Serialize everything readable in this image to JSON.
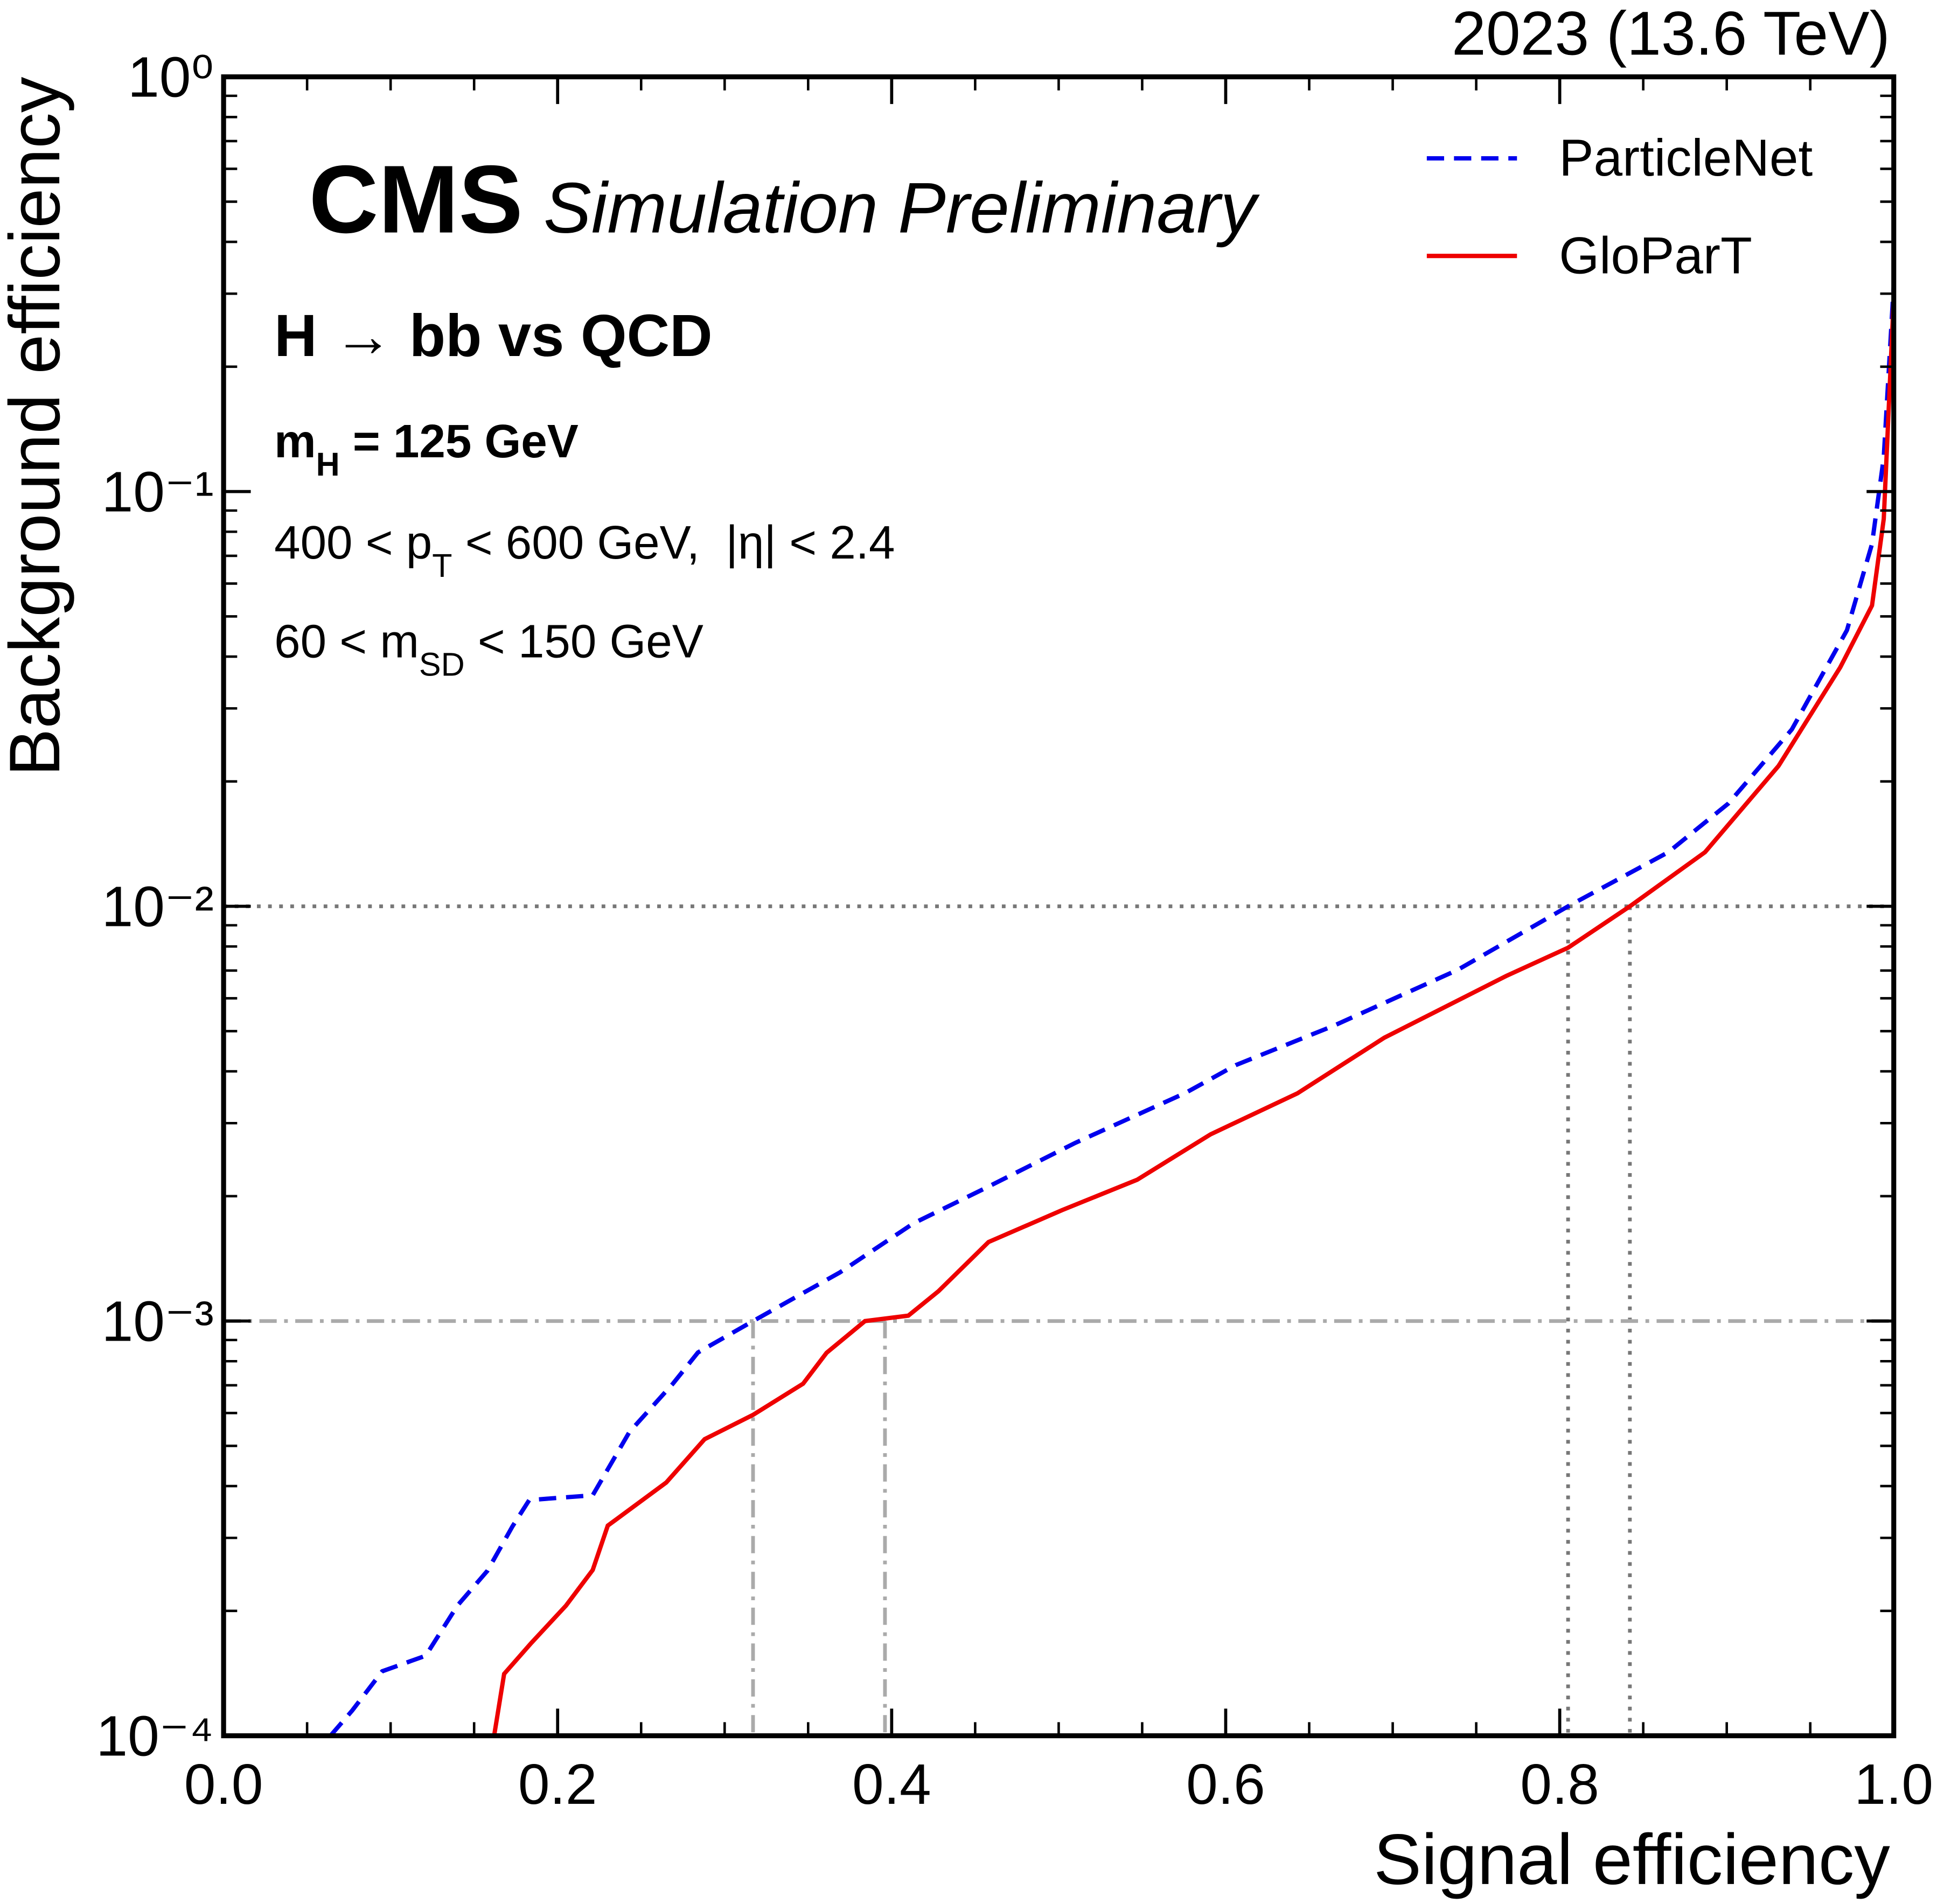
{
  "chart_data": {
    "type": "line",
    "title": "2023 (13.6 TeV)",
    "experiment": "CMS",
    "subtitle": "Simulation Preliminary",
    "annotations": [
      [
        {
          "t": "H → bb vs QCD"
        }
      ],
      [
        {
          "t": "m"
        },
        {
          "sub": "H"
        },
        {
          "t": " = 125 GeV"
        }
      ],
      [
        {
          "t": "400 < p"
        },
        {
          "sub": "T"
        },
        {
          "t": " < 600 GeV,  |η| < 2.4"
        }
      ],
      [
        {
          "t": "60 < m"
        },
        {
          "sub": "SD"
        },
        {
          "t": " < 150 GeV"
        }
      ]
    ],
    "xlabel": "Signal efficiency",
    "ylabel": "Background efficiency",
    "xlim": [
      0,
      1
    ],
    "ylim": [
      0.0001,
      1
    ],
    "yscale": "log",
    "xticks": [
      {
        "value": 0,
        "label": "0.0"
      },
      0.2,
      0.4,
      0.6,
      0.8,
      {
        "value": 1,
        "label": "1.0"
      }
    ],
    "xminorticks": [
      0.05,
      0.1,
      0.15,
      0.25,
      0.3,
      0.35,
      0.45,
      0.5,
      0.55,
      0.65,
      0.7,
      0.75,
      0.85,
      0.9,
      0.95
    ],
    "yticks": [
      {
        "value": 1,
        "label": "10⁰"
      },
      {
        "value": 0.1,
        "label": "10⁻¹"
      },
      {
        "value": 0.01,
        "label": "10⁻²"
      },
      {
        "value": 0.001,
        "label": "10⁻³"
      },
      {
        "value": 0.0001,
        "label": "10⁻⁴"
      }
    ],
    "yminorticks": [
      0.0002,
      0.0003,
      0.0004,
      0.0005,
      0.0006,
      0.0007,
      0.0008,
      0.0009,
      0.002,
      0.003,
      0.004,
      0.005,
      0.006,
      0.007,
      0.008,
      0.009,
      0.02,
      0.03,
      0.04,
      0.05,
      0.06,
      0.07,
      0.08,
      0.09,
      0.2,
      0.3,
      0.4,
      0.5,
      0.6,
      0.7,
      0.8,
      0.9
    ],
    "legend": "upper right",
    "series": [
      {
        "name": "ParticleNet",
        "color": "#0000ee",
        "dash": "dashed",
        "x": [
          0.064,
          0.077,
          0.095,
          0.121,
          0.14,
          0.158,
          0.173,
          0.183,
          0.221,
          0.243,
          0.269,
          0.284,
          0.317,
          0.369,
          0.413,
          0.458,
          0.51,
          0.576,
          0.606,
          0.665,
          0.739,
          0.805,
          0.865,
          0.901,
          0.939,
          0.972,
          0.987,
          0.994,
          1.0
        ],
        "values": [
          0.0001,
          0.000115,
          0.000143,
          0.000156,
          0.000206,
          0.00025,
          0.00032,
          0.00037,
          0.00038,
          0.00054,
          0.000706,
          0.00084,
          0.001,
          0.00131,
          0.00172,
          0.00211,
          0.00269,
          0.00355,
          0.00414,
          0.00516,
          0.00703,
          0.01,
          0.0135,
          0.0177,
          0.0267,
          0.0463,
          0.0748,
          0.121,
          0.316
        ]
      },
      {
        "name": "GloParT",
        "color": "#ee0000",
        "dash": "solid",
        "x": [
          0.162,
          0.168,
          0.184,
          0.205,
          0.221,
          0.23,
          0.265,
          0.288,
          0.317,
          0.347,
          0.361,
          0.384,
          0.41,
          0.428,
          0.458,
          0.502,
          0.547,
          0.591,
          0.643,
          0.695,
          0.768,
          0.805,
          0.842,
          0.887,
          0.931,
          0.968,
          0.987,
          0.994,
          1.0
        ],
        "values": [
          0.0001,
          0.000141,
          0.000167,
          0.000206,
          0.000251,
          0.000321,
          0.000408,
          0.000519,
          0.000594,
          0.000706,
          0.000838,
          0.001,
          0.00103,
          0.00118,
          0.00155,
          0.00185,
          0.00219,
          0.00282,
          0.00354,
          0.00482,
          0.00679,
          0.00795,
          0.01,
          0.0135,
          0.0218,
          0.0377,
          0.0531,
          0.0859,
          0.295
        ]
      }
    ],
    "reference_lines": [
      {
        "style": "dotted",
        "y": 0.01,
        "x": [
          0.805,
          0.842
        ]
      },
      {
        "style": "dashdot",
        "y": 0.001,
        "x": [
          0.317,
          0.396
        ]
      }
    ]
  }
}
